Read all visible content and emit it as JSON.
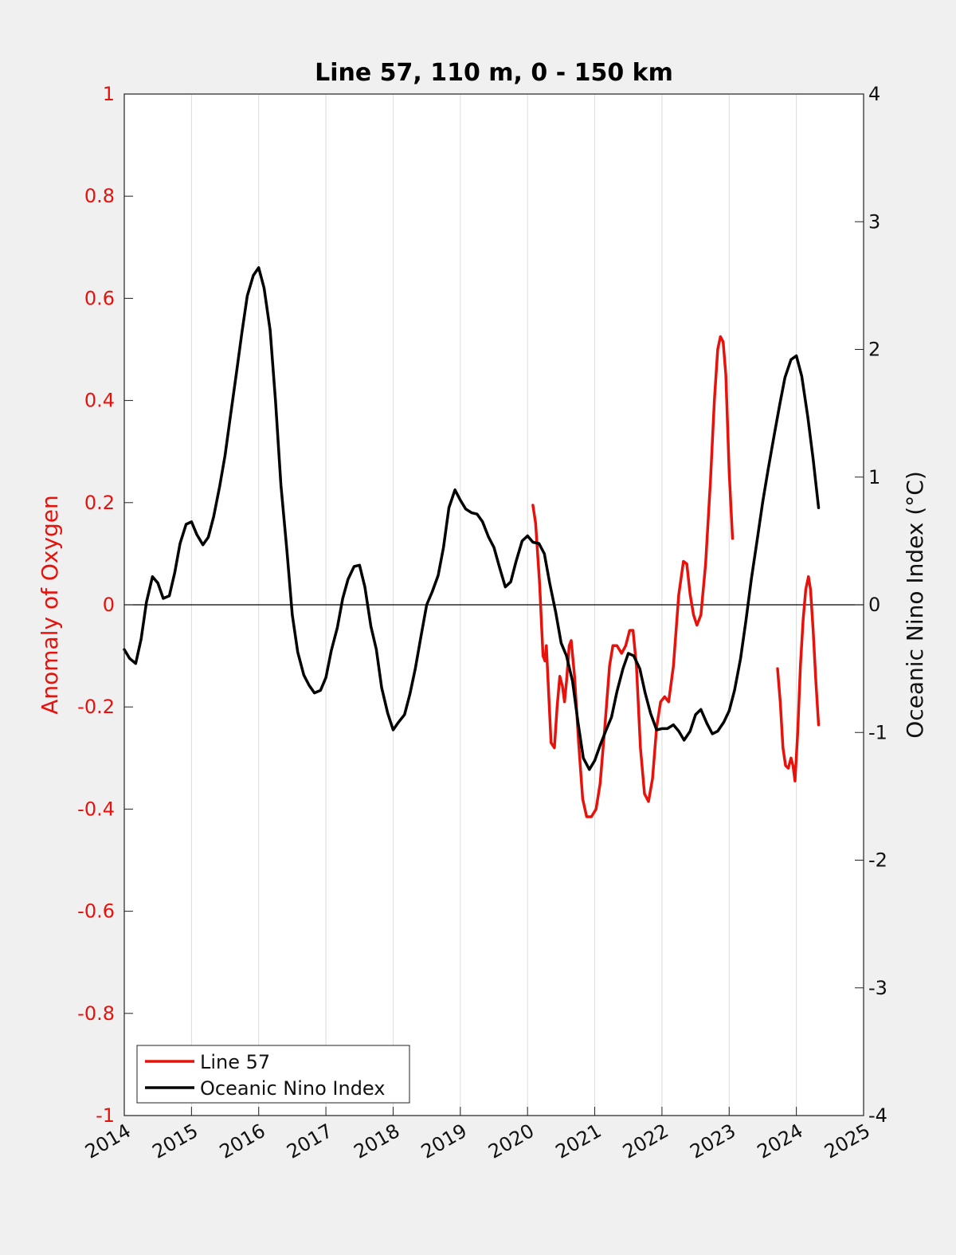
{
  "chart_data": {
    "type": "line",
    "title": "Line 57, 110 m, 0 - 150 km",
    "xlim": [
      2014,
      2025
    ],
    "x_ticks": [
      "2014",
      "2015",
      "2016",
      "2017",
      "2018",
      "2019",
      "2020",
      "2021",
      "2022",
      "2023",
      "2024",
      "2025"
    ],
    "y_left": {
      "label": "Anomaly of Oxygen",
      "lim": [
        -1,
        1
      ],
      "ticks": [
        "-1",
        "-0.8",
        "-0.6",
        "-0.4",
        "-0.2",
        "0",
        "0.2",
        "0.4",
        "0.6",
        "0.8",
        "1"
      ],
      "color": "#e8120c"
    },
    "y_right": {
      "label": "Oceanic Nino Index (°C)",
      "lim": [
        -4,
        4
      ],
      "ticks": [
        "-4",
        "-3",
        "-2",
        "-1",
        "0",
        "1",
        "2",
        "3",
        "4"
      ],
      "color": "#111111"
    },
    "grid": "vertical",
    "zero_line": true,
    "legend": {
      "placement": "bottom-left",
      "entries": [
        "Line 57",
        "Oceanic Nino Index"
      ]
    },
    "series": [
      {
        "name": "Line 57",
        "axis": "left",
        "color": "#e8120c",
        "segments": [
          [
            [
              2020.08,
              0.195
            ],
            [
              2020.12,
              0.16
            ],
            [
              2020.18,
              0.04
            ],
            [
              2020.23,
              -0.1
            ],
            [
              2020.26,
              -0.11
            ],
            [
              2020.28,
              -0.08
            ],
            [
              2020.31,
              -0.16
            ],
            [
              2020.35,
              -0.27
            ],
            [
              2020.4,
              -0.28
            ],
            [
              2020.44,
              -0.2
            ],
            [
              2020.48,
              -0.14
            ],
            [
              2020.52,
              -0.16
            ],
            [
              2020.55,
              -0.19
            ],
            [
              2020.58,
              -0.15
            ],
            [
              2020.62,
              -0.08
            ],
            [
              2020.65,
              -0.07
            ],
            [
              2020.7,
              -0.14
            ],
            [
              2020.76,
              -0.27
            ],
            [
              2020.82,
              -0.38
            ],
            [
              2020.88,
              -0.415
            ],
            [
              2020.95,
              -0.415
            ],
            [
              2021.02,
              -0.4
            ],
            [
              2021.08,
              -0.35
            ],
            [
              2021.15,
              -0.24
            ],
            [
              2021.22,
              -0.12
            ],
            [
              2021.27,
              -0.08
            ],
            [
              2021.33,
              -0.08
            ],
            [
              2021.4,
              -0.095
            ],
            [
              2021.46,
              -0.08
            ],
            [
              2021.52,
              -0.05
            ],
            [
              2021.57,
              -0.05
            ],
            [
              2021.62,
              -0.12
            ],
            [
              2021.68,
              -0.28
            ],
            [
              2021.74,
              -0.37
            ],
            [
              2021.8,
              -0.385
            ],
            [
              2021.86,
              -0.34
            ],
            [
              2021.92,
              -0.24
            ],
            [
              2021.98,
              -0.19
            ],
            [
              2022.04,
              -0.18
            ],
            [
              2022.1,
              -0.19
            ],
            [
              2022.17,
              -0.12
            ],
            [
              2022.25,
              0.02
            ],
            [
              2022.32,
              0.085
            ],
            [
              2022.37,
              0.08
            ],
            [
              2022.42,
              0.02
            ],
            [
              2022.47,
              -0.02
            ],
            [
              2022.52,
              -0.04
            ],
            [
              2022.58,
              -0.02
            ],
            [
              2022.65,
              0.08
            ],
            [
              2022.72,
              0.24
            ],
            [
              2022.78,
              0.4
            ],
            [
              2022.83,
              0.5
            ],
            [
              2022.87,
              0.525
            ],
            [
              2022.91,
              0.515
            ],
            [
              2022.95,
              0.45
            ],
            [
              2023.0,
              0.26
            ],
            [
              2023.05,
              0.13
            ]
          ],
          [
            [
              2023.72,
              -0.125
            ],
            [
              2023.76,
              -0.19
            ],
            [
              2023.8,
              -0.28
            ],
            [
              2023.84,
              -0.315
            ],
            [
              2023.88,
              -0.32
            ],
            [
              2023.92,
              -0.3
            ],
            [
              2023.95,
              -0.315
            ],
            [
              2023.98,
              -0.345
            ],
            [
              2024.02,
              -0.25
            ],
            [
              2024.06,
              -0.12
            ],
            [
              2024.1,
              -0.03
            ],
            [
              2024.14,
              0.03
            ],
            [
              2024.18,
              0.055
            ],
            [
              2024.21,
              0.03
            ],
            [
              2024.25,
              -0.05
            ],
            [
              2024.29,
              -0.15
            ],
            [
              2024.33,
              -0.235
            ]
          ]
        ]
      },
      {
        "name": "Oceanic Nino Index",
        "axis": "right",
        "color": "#000000",
        "values": [
          [
            2014.0,
            -0.35
          ],
          [
            2014.08,
            -0.42
          ],
          [
            2014.17,
            -0.46
          ],
          [
            2014.25,
            -0.27
          ],
          [
            2014.33,
            0.02
          ],
          [
            2014.42,
            0.22
          ],
          [
            2014.5,
            0.17
          ],
          [
            2014.58,
            0.05
          ],
          [
            2014.67,
            0.07
          ],
          [
            2014.75,
            0.25
          ],
          [
            2014.83,
            0.48
          ],
          [
            2014.92,
            0.63
          ],
          [
            2015.0,
            0.65
          ],
          [
            2015.08,
            0.55
          ],
          [
            2015.17,
            0.47
          ],
          [
            2015.25,
            0.53
          ],
          [
            2015.33,
            0.69
          ],
          [
            2015.42,
            0.93
          ],
          [
            2015.5,
            1.17
          ],
          [
            2015.58,
            1.48
          ],
          [
            2015.67,
            1.82
          ],
          [
            2015.75,
            2.13
          ],
          [
            2015.83,
            2.42
          ],
          [
            2015.92,
            2.58
          ],
          [
            2016.0,
            2.64
          ],
          [
            2016.08,
            2.48
          ],
          [
            2016.17,
            2.15
          ],
          [
            2016.25,
            1.6
          ],
          [
            2016.33,
            0.94
          ],
          [
            2016.42,
            0.42
          ],
          [
            2016.5,
            -0.08
          ],
          [
            2016.58,
            -0.37
          ],
          [
            2016.67,
            -0.55
          ],
          [
            2016.75,
            -0.63
          ],
          [
            2016.83,
            -0.69
          ],
          [
            2016.92,
            -0.67
          ],
          [
            2017.0,
            -0.57
          ],
          [
            2017.08,
            -0.36
          ],
          [
            2017.17,
            -0.18
          ],
          [
            2017.25,
            0.05
          ],
          [
            2017.33,
            0.2
          ],
          [
            2017.42,
            0.3
          ],
          [
            2017.5,
            0.31
          ],
          [
            2017.58,
            0.14
          ],
          [
            2017.67,
            -0.17
          ],
          [
            2017.75,
            -0.35
          ],
          [
            2017.83,
            -0.65
          ],
          [
            2017.92,
            -0.85
          ],
          [
            2018.0,
            -0.98
          ],
          [
            2018.08,
            -0.92
          ],
          [
            2018.17,
            -0.86
          ],
          [
            2018.25,
            -0.7
          ],
          [
            2018.33,
            -0.5
          ],
          [
            2018.42,
            -0.23
          ],
          [
            2018.5,
            0.0
          ],
          [
            2018.58,
            0.1
          ],
          [
            2018.67,
            0.23
          ],
          [
            2018.75,
            0.45
          ],
          [
            2018.83,
            0.76
          ],
          [
            2018.92,
            0.9
          ],
          [
            2019.0,
            0.82
          ],
          [
            2019.08,
            0.75
          ],
          [
            2019.17,
            0.72
          ],
          [
            2019.25,
            0.71
          ],
          [
            2019.33,
            0.65
          ],
          [
            2019.42,
            0.53
          ],
          [
            2019.5,
            0.45
          ],
          [
            2019.58,
            0.3
          ],
          [
            2019.67,
            0.14
          ],
          [
            2019.75,
            0.18
          ],
          [
            2019.83,
            0.34
          ],
          [
            2019.92,
            0.5
          ],
          [
            2020.0,
            0.54
          ],
          [
            2020.08,
            0.49
          ],
          [
            2020.17,
            0.48
          ],
          [
            2020.25,
            0.4
          ],
          [
            2020.33,
            0.17
          ],
          [
            2020.42,
            -0.06
          ],
          [
            2020.5,
            -0.3
          ],
          [
            2020.58,
            -0.4
          ],
          [
            2020.67,
            -0.6
          ],
          [
            2020.75,
            -0.92
          ],
          [
            2020.83,
            -1.2
          ],
          [
            2020.92,
            -1.29
          ],
          [
            2021.0,
            -1.22
          ],
          [
            2021.08,
            -1.1
          ],
          [
            2021.17,
            -0.98
          ],
          [
            2021.25,
            -0.88
          ],
          [
            2021.33,
            -0.68
          ],
          [
            2021.42,
            -0.5
          ],
          [
            2021.5,
            -0.38
          ],
          [
            2021.58,
            -0.4
          ],
          [
            2021.67,
            -0.5
          ],
          [
            2021.75,
            -0.69
          ],
          [
            2021.83,
            -0.85
          ],
          [
            2021.92,
            -0.98
          ],
          [
            2022.0,
            -0.97
          ],
          [
            2022.08,
            -0.97
          ],
          [
            2022.17,
            -0.94
          ],
          [
            2022.25,
            -0.99
          ],
          [
            2022.33,
            -1.06
          ],
          [
            2022.42,
            -0.99
          ],
          [
            2022.5,
            -0.86
          ],
          [
            2022.58,
            -0.82
          ],
          [
            2022.67,
            -0.93
          ],
          [
            2022.75,
            -1.01
          ],
          [
            2022.83,
            -0.99
          ],
          [
            2022.92,
            -0.92
          ],
          [
            2023.0,
            -0.83
          ],
          [
            2023.08,
            -0.67
          ],
          [
            2023.17,
            -0.42
          ],
          [
            2023.25,
            -0.12
          ],
          [
            2023.33,
            0.2
          ],
          [
            2023.42,
            0.52
          ],
          [
            2023.5,
            0.81
          ],
          [
            2023.58,
            1.06
          ],
          [
            2023.67,
            1.33
          ],
          [
            2023.75,
            1.56
          ],
          [
            2023.83,
            1.78
          ],
          [
            2023.92,
            1.92
          ],
          [
            2024.0,
            1.95
          ],
          [
            2024.08,
            1.79
          ],
          [
            2024.17,
            1.47
          ],
          [
            2024.25,
            1.14
          ],
          [
            2024.33,
            0.76
          ]
        ]
      }
    ]
  }
}
